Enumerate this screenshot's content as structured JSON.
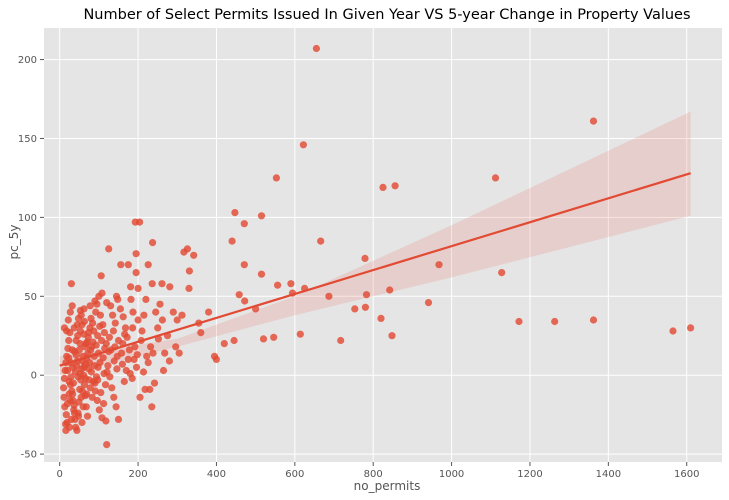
{
  "chart_data": {
    "type": "scatter",
    "title": "Number of Select Permits Issued In Given Year VS 5-year Change in Property Values",
    "xlabel": "no_permits",
    "ylabel": "pc_5y",
    "xlim": [
      -40,
      1690
    ],
    "ylim": [
      -55,
      220
    ],
    "x_ticks": [
      0,
      200,
      400,
      600,
      800,
      1000,
      1200,
      1400,
      1600
    ],
    "y_ticks": [
      -50,
      0,
      50,
      100,
      150,
      200
    ],
    "grid": true,
    "style": "ggplot",
    "colors": {
      "background": "#e5e5e5",
      "grid": "#ffffff",
      "points": "#e24a33",
      "band": "#e24a33",
      "text": "#555555"
    },
    "regression": {
      "line": [
        [
          0,
          6
        ],
        [
          1610,
          128
        ]
      ],
      "ci_upper": [
        [
          0,
          12
        ],
        [
          300,
          23
        ],
        [
          600,
          50
        ],
        [
          1000,
          95
        ],
        [
          1610,
          167
        ]
      ],
      "ci_lower": [
        [
          0,
          0
        ],
        [
          300,
          18
        ],
        [
          600,
          38
        ],
        [
          1000,
          62
        ],
        [
          1610,
          101
        ]
      ]
    },
    "points": [
      [
        655,
        207
      ],
      [
        1362,
        161
      ],
      [
        622,
        146
      ],
      [
        553,
        125
      ],
      [
        1112,
        125
      ],
      [
        856,
        120
      ],
      [
        825,
        119
      ],
      [
        447,
        103
      ],
      [
        515,
        101
      ],
      [
        471,
        96
      ],
      [
        193,
        97
      ],
      [
        204,
        97
      ],
      [
        666,
        85
      ],
      [
        125,
        80
      ],
      [
        326,
        80
      ],
      [
        237,
        84
      ],
      [
        440,
        85
      ],
      [
        342,
        76
      ],
      [
        317,
        78
      ],
      [
        779,
        74
      ],
      [
        175,
        70
      ],
      [
        195,
        77
      ],
      [
        226,
        70
      ],
      [
        471,
        70
      ],
      [
        968,
        70
      ],
      [
        1128,
        65
      ],
      [
        331,
        66
      ],
      [
        515,
        64
      ],
      [
        106,
        63
      ],
      [
        156,
        70
      ],
      [
        30,
        58
      ],
      [
        195,
        65
      ],
      [
        261,
        58
      ],
      [
        281,
        56
      ],
      [
        556,
        57
      ],
      [
        590,
        58
      ],
      [
        594,
        52
      ],
      [
        625,
        55
      ],
      [
        687,
        50
      ],
      [
        783,
        51
      ],
      [
        842,
        54
      ],
      [
        458,
        51
      ],
      [
        472,
        47
      ],
      [
        941,
        46
      ],
      [
        753,
        42
      ],
      [
        500,
        42
      ],
      [
        780,
        43
      ],
      [
        820,
        36
      ],
      [
        848,
        25
      ],
      [
        1172,
        34
      ],
      [
        1263,
        34
      ],
      [
        1362,
        35
      ],
      [
        1565,
        28
      ],
      [
        1610,
        30
      ],
      [
        717,
        22
      ],
      [
        614,
        26
      ],
      [
        546,
        24
      ],
      [
        520,
        23
      ],
      [
        445,
        22
      ],
      [
        395,
        12
      ],
      [
        400,
        10
      ],
      [
        360,
        27
      ],
      [
        305,
        14
      ],
      [
        252,
        23
      ],
      [
        268,
        14
      ],
      [
        280,
        9
      ],
      [
        238,
        14
      ],
      [
        230,
        -9
      ],
      [
        235,
        -20
      ],
      [
        218,
        -9
      ],
      [
        205,
        -14
      ],
      [
        190,
        10
      ],
      [
        178,
        16
      ],
      [
        161,
        20
      ],
      [
        147,
        12
      ],
      [
        139,
        9
      ],
      [
        125,
        15
      ],
      [
        121,
        2
      ],
      [
        118,
        -29
      ],
      [
        120,
        -44
      ],
      [
        150,
        -28
      ],
      [
        105,
        -11
      ],
      [
        98,
        5
      ],
      [
        90,
        -5
      ],
      [
        82,
        18
      ],
      [
        75,
        -3
      ],
      [
        66,
        7
      ],
      [
        59,
        12
      ],
      [
        52,
        20
      ],
      [
        46,
        25
      ],
      [
        38,
        15
      ],
      [
        33,
        5
      ],
      [
        28,
        -6
      ],
      [
        24,
        -12
      ],
      [
        20,
        -18
      ],
      [
        17,
        -25
      ],
      [
        15,
        -31
      ],
      [
        13,
        -20
      ],
      [
        11,
        -14
      ],
      [
        10,
        -8
      ],
      [
        12,
        -2
      ],
      [
        14,
        3
      ],
      [
        16,
        8
      ],
      [
        18,
        12
      ],
      [
        21,
        17
      ],
      [
        23,
        22
      ],
      [
        26,
        27
      ],
      [
        29,
        -1
      ],
      [
        31,
        -10
      ],
      [
        34,
        -16
      ],
      [
        36,
        -22
      ],
      [
        39,
        -28
      ],
      [
        41,
        -33
      ],
      [
        44,
        -35
      ],
      [
        47,
        -24
      ],
      [
        49,
        -17
      ],
      [
        51,
        -9
      ],
      [
        54,
        -3
      ],
      [
        56,
        4
      ],
      [
        58,
        9
      ],
      [
        61,
        0
      ],
      [
        63,
        -6
      ],
      [
        65,
        -13
      ],
      [
        68,
        -20
      ],
      [
        71,
        -26
      ],
      [
        73,
        24
      ],
      [
        77,
        30
      ],
      [
        80,
        36
      ],
      [
        84,
        33
      ],
      [
        87,
        28
      ],
      [
        92,
        40
      ],
      [
        95,
        45
      ],
      [
        100,
        50
      ],
      [
        104,
        38
      ],
      [
        110,
        32
      ],
      [
        114,
        27
      ],
      [
        130,
        44
      ],
      [
        135,
        38
      ],
      [
        142,
        33
      ],
      [
        148,
        48
      ],
      [
        155,
        42
      ],
      [
        162,
        37
      ],
      [
        168,
        30
      ],
      [
        172,
        24
      ],
      [
        182,
        48
      ],
      [
        187,
        40
      ],
      [
        200,
        35
      ],
      [
        210,
        28
      ],
      [
        220,
        48
      ],
      [
        245,
        40
      ],
      [
        256,
        45
      ],
      [
        290,
        40
      ],
      [
        300,
        35
      ],
      [
        18,
        28
      ],
      [
        22,
        35
      ],
      [
        27,
        40
      ],
      [
        32,
        44
      ],
      [
        37,
        30
      ],
      [
        42,
        22
      ],
      [
        48,
        36
      ],
      [
        53,
        41
      ],
      [
        57,
        32
      ],
      [
        62,
        26
      ],
      [
        67,
        20
      ],
      [
        72,
        14
      ],
      [
        76,
        8
      ],
      [
        81,
        2
      ],
      [
        86,
        -4
      ],
      [
        91,
        -10
      ],
      [
        96,
        -16
      ],
      [
        101,
        -22
      ],
      [
        108,
        -27
      ],
      [
        112,
        -18
      ],
      [
        117,
        -6
      ],
      [
        123,
        6
      ],
      [
        128,
        -1
      ],
      [
        133,
        -8
      ],
      [
        138,
        -14
      ],
      [
        144,
        -20
      ],
      [
        165,
        -4
      ],
      [
        170,
        3
      ],
      [
        185,
        -2
      ],
      [
        196,
        5
      ],
      [
        214,
        2
      ],
      [
        226,
        8
      ],
      [
        242,
        -5
      ],
      [
        265,
        3
      ],
      [
        12,
        30
      ],
      [
        16,
        -35
      ],
      [
        19,
        -30
      ],
      [
        25,
        -33
      ],
      [
        30,
        -28
      ],
      [
        35,
        -5
      ],
      [
        40,
        2
      ],
      [
        45,
        9
      ],
      [
        50,
        16
      ],
      [
        55,
        -14
      ],
      [
        60,
        -20
      ],
      [
        64,
        18
      ],
      [
        69,
        11
      ],
      [
        74,
        4
      ],
      [
        78,
        -8
      ],
      [
        83,
        -14
      ],
      [
        88,
        12
      ],
      [
        93,
        19
      ],
      [
        97,
        25
      ],
      [
        102,
        31
      ],
      [
        107,
        22
      ],
      [
        115,
        17
      ],
      [
        127,
        24
      ],
      [
        137,
        28
      ],
      [
        150,
        22
      ],
      [
        158,
        14
      ],
      [
        175,
        10
      ],
      [
        192,
        18
      ],
      [
        208,
        22
      ],
      [
        232,
        18
      ],
      [
        250,
        30
      ],
      [
        275,
        25
      ],
      [
        312,
        38
      ],
      [
        355,
        33
      ],
      [
        380,
        40
      ],
      [
        420,
        20
      ],
      [
        23,
        11
      ],
      [
        27,
        -16
      ],
      [
        32,
        16
      ],
      [
        37,
        -19
      ],
      [
        43,
        6
      ],
      [
        48,
        -26
      ],
      [
        52,
        1
      ],
      [
        57,
        -30
      ],
      [
        62,
        5
      ],
      [
        66,
        -2
      ],
      [
        70,
        21
      ],
      [
        79,
        16
      ],
      [
        85,
        21
      ],
      [
        94,
        -1
      ],
      [
        99,
        14
      ],
      [
        103,
        8
      ],
      [
        111,
        11
      ],
      [
        119,
        20
      ],
      [
        131,
        16
      ],
      [
        146,
        4
      ],
      [
        160,
        7
      ],
      [
        180,
        1
      ],
      [
        198,
        13
      ],
      [
        222,
        12
      ],
      [
        20,
        3
      ],
      [
        24,
        -4
      ],
      [
        28,
        8
      ],
      [
        33,
        -12
      ],
      [
        38,
        -24
      ],
      [
        42,
        13
      ],
      [
        47,
        -1
      ],
      [
        53,
        28
      ],
      [
        58,
        -10
      ],
      [
        63,
        34
      ],
      [
        69,
        -12
      ],
      [
        74,
        27
      ],
      [
        89,
        6
      ],
      [
        97,
        -3
      ],
      [
        113,
        1
      ],
      [
        141,
        18
      ],
      [
        166,
        26
      ],
      [
        186,
        30
      ],
      [
        215,
        38
      ],
      [
        262,
        35
      ],
      [
        296,
        18
      ],
      [
        330,
        55
      ],
      [
        236,
        58
      ],
      [
        181,
        56
      ],
      [
        200,
        55
      ],
      [
        145,
        50
      ],
      [
        120,
        46
      ],
      [
        108,
        52
      ],
      [
        90,
        47
      ],
      [
        78,
        44
      ],
      [
        62,
        42
      ],
      [
        55,
        38
      ],
      [
        45,
        32
      ]
    ]
  }
}
